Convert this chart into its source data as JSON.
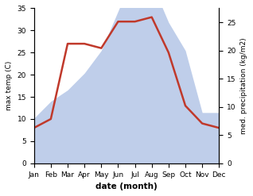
{
  "months": [
    "Jan",
    "Feb",
    "Mar",
    "Apr",
    "May",
    "Jun",
    "Jul",
    "Aug",
    "Sep",
    "Oct",
    "Nov",
    "Dec"
  ],
  "temp": [
    8,
    10,
    27,
    27,
    26,
    32,
    32,
    33,
    25,
    13,
    9,
    8
  ],
  "precip_raw": [
    8,
    11,
    13,
    16,
    20,
    27,
    34,
    32,
    25,
    20,
    9,
    9
  ],
  "temp_ylim": [
    0,
    35
  ],
  "precip_ylim": [
    0,
    27.5
  ],
  "temp_yticks": [
    0,
    5,
    10,
    15,
    20,
    25,
    30,
    35
  ],
  "precip_yticks": [
    0,
    5,
    10,
    15,
    20,
    25
  ],
  "xlabel": "date (month)",
  "ylabel_left": "max temp (C)",
  "ylabel_right": "med. precipitation (kg/m2)",
  "line_color": "#c0392b",
  "fill_color": "#b8c9e8",
  "fill_alpha": 0.9,
  "line_width": 1.8,
  "background_color": "#ffffff"
}
